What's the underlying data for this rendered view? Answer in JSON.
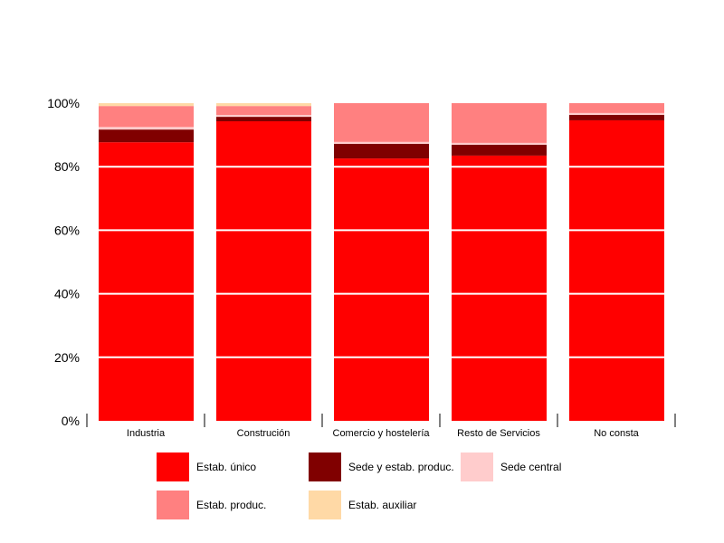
{
  "chart_data": {
    "type": "bar",
    "stacked": true,
    "categories": [
      "Industria",
      "Construción",
      "Comercio y hostelería",
      "Resto de Servicios",
      "No consta"
    ],
    "series": [
      {
        "name": "Estab. único",
        "color": "#FF0000",
        "values": [
          87.7,
          94.3,
          82.6,
          83.5,
          94.6
        ]
      },
      {
        "name": "Sede y estab. produc.",
        "color": "#800000",
        "values": [
          4.0,
          1.4,
          4.6,
          3.4,
          1.7
        ]
      },
      {
        "name": "Sede central",
        "color": "#FFCCCC",
        "values": [
          0.8,
          0.6,
          0.6,
          0.6,
          0.6
        ]
      },
      {
        "name": "Estab. produc.",
        "color": "#FF8080",
        "values": [
          6.6,
          2.8,
          12.2,
          12.5,
          3.1
        ]
      },
      {
        "name": "Estab. auxiliar",
        "color": "#FFD9A6",
        "values": [
          0.9,
          0.9,
          0.0,
          0.0,
          0.0
        ]
      }
    ],
    "ylim": [
      0,
      100
    ],
    "yticks": [
      {
        "value": 0,
        "label": "0%"
      },
      {
        "value": 20,
        "label": "20%"
      },
      {
        "value": 40,
        "label": "40%"
      },
      {
        "value": 60,
        "label": "60%"
      },
      {
        "value": 80,
        "label": "80%"
      },
      {
        "value": 100,
        "label": "100%"
      }
    ],
    "grid": true,
    "legend": "bottom"
  }
}
